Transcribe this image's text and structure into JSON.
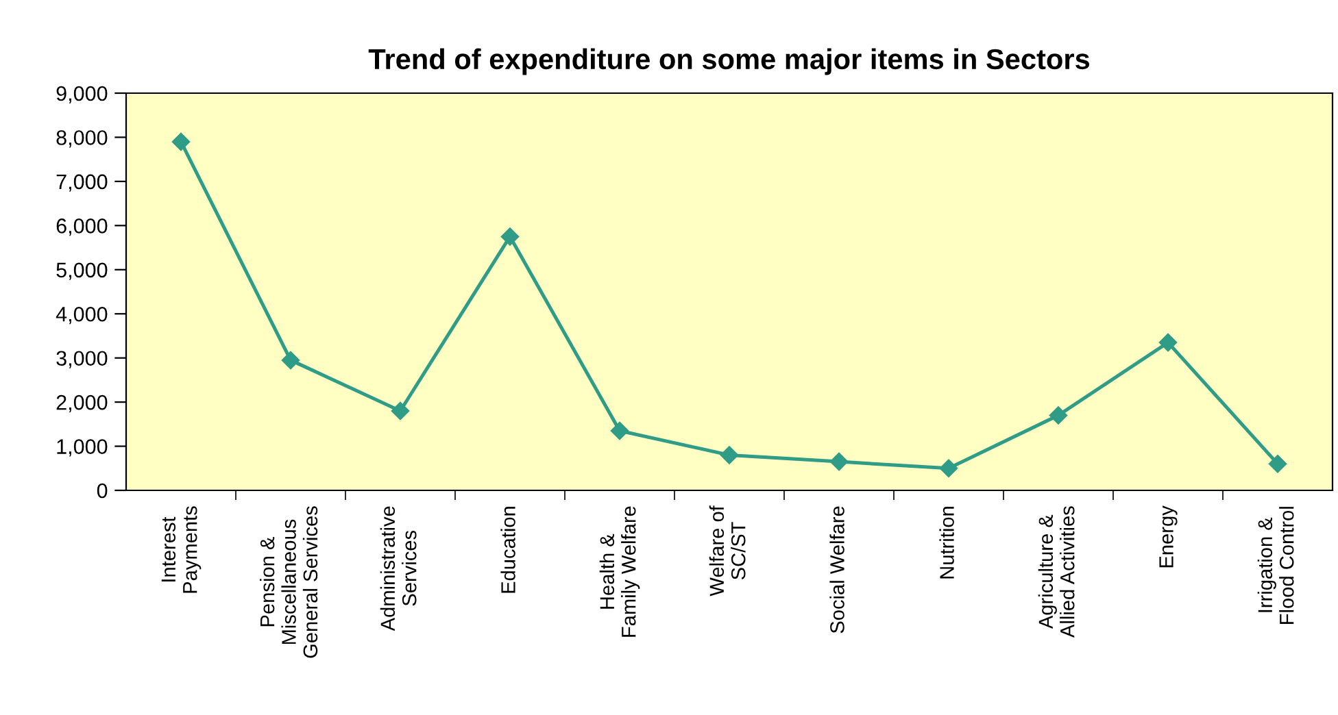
{
  "chart_data": {
    "type": "line",
    "title": "Trend of expenditure on some major items in Sectors",
    "categories": [
      "Interest\nPayments",
      "Pension &\nMiscellaneous\nGeneral Services",
      "Administrative\nServices",
      "Education",
      "Health &\nFamily Welfare",
      "Welfare of\nSC/ST",
      "Social Welfare",
      "Nutrition",
      "Agriculture &\nAllied Activities",
      "Energy",
      "Irrigation &\nFlood Control"
    ],
    "series": [
      {
        "color": "#2e9c86",
        "values": [
          7900,
          2950,
          1800,
          5750,
          1350,
          800,
          650,
          500,
          1700,
          3350,
          600
        ]
      }
    ],
    "ylim": [
      0,
      9000
    ],
    "yticks": [
      {
        "value": 0,
        "label": "0"
      },
      {
        "value": 1000,
        "label": "1,000"
      },
      {
        "value": 2000,
        "label": "2,000"
      },
      {
        "value": 3000,
        "label": "3,000"
      },
      {
        "value": 4000,
        "label": "4,000"
      },
      {
        "value": 5000,
        "label": "5,000"
      },
      {
        "value": 6000,
        "label": "6,000"
      },
      {
        "value": 7000,
        "label": "7,000"
      },
      {
        "value": 8000,
        "label": "8,000"
      },
      {
        "value": 9000,
        "label": "9,000"
      }
    ],
    "marker": "diamond",
    "line_style": "solid"
  }
}
